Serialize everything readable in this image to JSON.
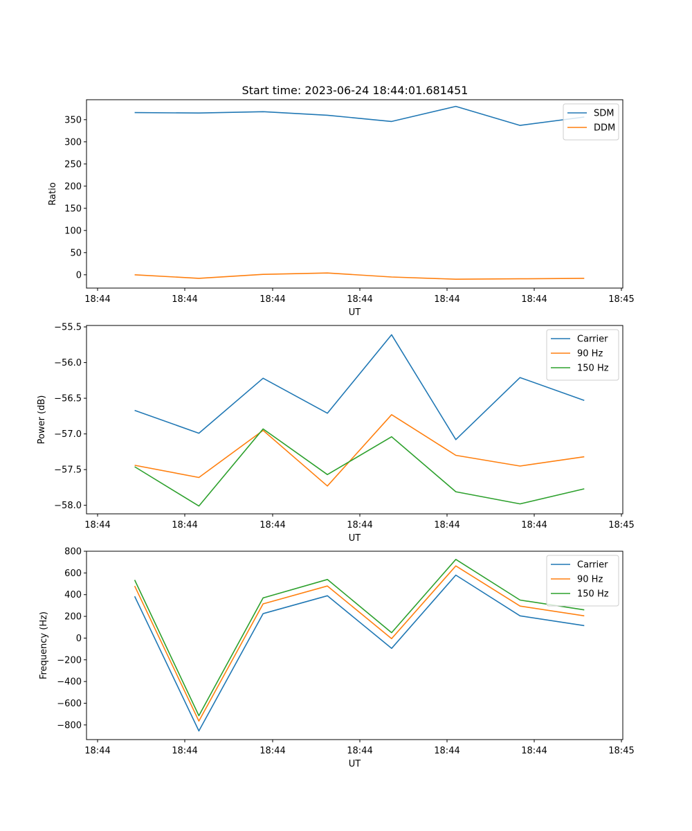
{
  "figure": {
    "title": "Start time: 2023-06-24 18:44:01.681451"
  },
  "chart_data": [
    {
      "type": "line",
      "title": "Start time: 2023-06-24 18:44:01.681451",
      "xlabel": "UT",
      "ylabel": "Ratio",
      "x_tick_labels": [
        "18:44",
        "18:44",
        "18:44",
        "18:44",
        "18:44",
        "18:44",
        "18:45"
      ],
      "y_ticks": [
        0,
        50,
        100,
        150,
        200,
        250,
        300,
        350
      ],
      "ylim": [
        -30,
        395
      ],
      "grid": false,
      "legend_position": "top-right",
      "x": [
        1,
        2,
        3,
        4,
        5,
        6,
        7,
        8
      ],
      "series": [
        {
          "name": "SDM",
          "color": "#1f77b4",
          "values": [
            366,
            365,
            368,
            360,
            346,
            380,
            337,
            356
          ]
        },
        {
          "name": "DDM",
          "color": "#ff7f0e",
          "values": [
            0,
            -8,
            1,
            4,
            -5,
            -10,
            -9,
            -8
          ]
        }
      ]
    },
    {
      "type": "line",
      "title": "",
      "xlabel": "UT",
      "ylabel": "Power (dB)",
      "x_tick_labels": [
        "18:44",
        "18:44",
        "18:44",
        "18:44",
        "18:44",
        "18:44",
        "18:45"
      ],
      "y_ticks": [
        -58.0,
        -57.5,
        -57.0,
        -56.5,
        -56.0,
        -55.5
      ],
      "y_tick_labels": [
        "−58.0",
        "−57.5",
        "−57.0",
        "−56.5",
        "−56.0",
        "−55.5"
      ],
      "ylim": [
        -58.12,
        -55.48
      ],
      "grid": false,
      "legend_position": "top-right",
      "x": [
        1,
        2,
        3,
        4,
        5,
        6,
        7,
        8
      ],
      "series": [
        {
          "name": "Carrier",
          "color": "#1f77b4",
          "values": [
            -56.67,
            -56.99,
            -56.22,
            -56.71,
            -55.61,
            -57.08,
            -56.21,
            -56.53
          ]
        },
        {
          "name": "90 Hz",
          "color": "#ff7f0e",
          "values": [
            -57.44,
            -57.61,
            -56.95,
            -57.73,
            -56.73,
            -57.3,
            -57.45,
            -57.32
          ]
        },
        {
          "name": "150 Hz",
          "color": "#2ca02c",
          "values": [
            -57.46,
            -58.01,
            -56.93,
            -57.57,
            -57.04,
            -57.81,
            -57.98,
            -57.77
          ]
        }
      ]
    },
    {
      "type": "line",
      "title": "",
      "xlabel": "UT",
      "ylabel": "Frequency (Hz)",
      "x_tick_labels": [
        "18:44",
        "18:44",
        "18:44",
        "18:44",
        "18:44",
        "18:44",
        "18:45"
      ],
      "y_ticks": [
        -800,
        -600,
        -400,
        -200,
        0,
        200,
        400,
        600,
        800
      ],
      "y_tick_labels": [
        "−800",
        "−600",
        "−400",
        "−200",
        "0",
        "200",
        "400",
        "600",
        "800"
      ],
      "ylim": [
        -935,
        800
      ],
      "grid": false,
      "legend_position": "top-right",
      "x": [
        1,
        2,
        3,
        4,
        5,
        6,
        7,
        8
      ],
      "series": [
        {
          "name": "Carrier",
          "color": "#1f77b4",
          "values": [
            385,
            -855,
            225,
            390,
            -95,
            580,
            205,
            115
          ]
        },
        {
          "name": "90 Hz",
          "color": "#ff7f0e",
          "values": [
            480,
            -765,
            315,
            480,
            -5,
            665,
            295,
            205
          ]
        },
        {
          "name": "150 Hz",
          "color": "#2ca02c",
          "values": [
            535,
            -715,
            370,
            540,
            50,
            725,
            350,
            260
          ]
        }
      ]
    }
  ]
}
